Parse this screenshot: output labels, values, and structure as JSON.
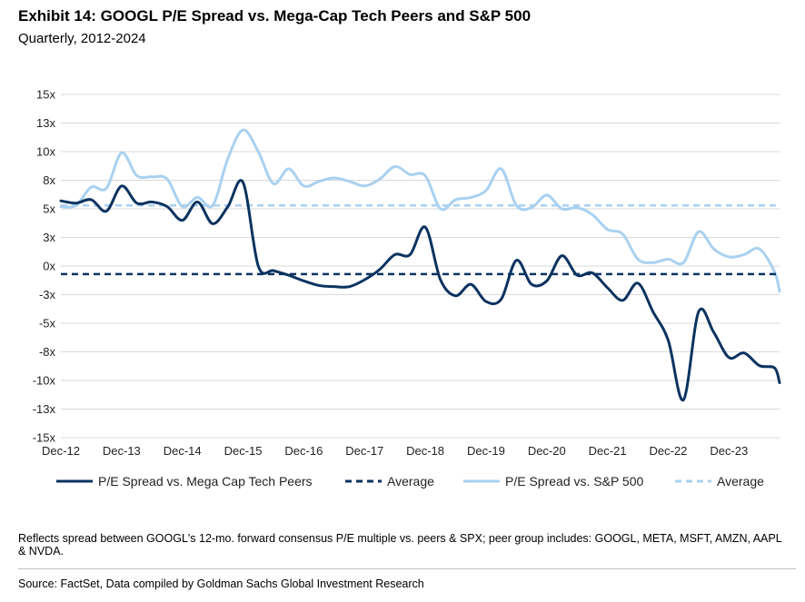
{
  "title": "Exhibit 14: GOOGL P/E Spread vs. Mega-Cap Tech Peers and S&P 500",
  "subtitle": "Quarterly, 2012-2024",
  "footnote": "Reflects spread between GOOGL's 12-mo. forward consensus P/E multiple vs. peers & SPX; peer group includes: GOOGL, META, MSFT, AMZN, AAPL & NVDA.",
  "source": "Source: FactSet, Data compiled by Goldman Sachs Global Investment Research",
  "colors": {
    "dark": "#0b3360",
    "light": "#a9d1f0",
    "grid": "#d9d9d9"
  },
  "chart_data": {
    "type": "line",
    "ylim": [
      -15,
      15
    ],
    "xlim": [
      2012.917,
      2024.75
    ],
    "y_ticks": [
      15,
      12.5,
      10,
      7.5,
      5,
      2.5,
      0,
      -2.5,
      -5,
      -7.5,
      -10,
      -12.5,
      -15
    ],
    "y_tick_labels": [
      "15x",
      "13x",
      "10x",
      "8x",
      "5x",
      "3x",
      "0x",
      "-3x",
      "-5x",
      "-8x",
      "-10x",
      "-13x",
      "-15x"
    ],
    "x_ticks": [
      2012.917,
      2013.917,
      2014.917,
      2015.917,
      2016.917,
      2017.917,
      2018.917,
      2019.917,
      2020.917,
      2021.917,
      2022.917,
      2023.917
    ],
    "x_tick_labels": [
      "Dec-12",
      "Dec-13",
      "Dec-14",
      "Dec-15",
      "Dec-16",
      "Dec-17",
      "Dec-18",
      "Dec-19",
      "Dec-20",
      "Dec-21",
      "Dec-22",
      "Dec-23"
    ],
    "grid": "horizontal",
    "legend_position": "bottom",
    "series": [
      {
        "name": "P/E Spread vs. Mega Cap Tech Peers",
        "color": "#0b3360",
        "dash": false,
        "x": [
          2012.917,
          2013.167,
          2013.417,
          2013.667,
          2013.917,
          2014.167,
          2014.417,
          2014.667,
          2014.917,
          2015.167,
          2015.417,
          2015.667,
          2015.917,
          2016.167,
          2016.417,
          2016.667,
          2016.917,
          2017.167,
          2017.417,
          2017.667,
          2017.917,
          2018.167,
          2018.417,
          2018.667,
          2018.917,
          2019.167,
          2019.417,
          2019.667,
          2019.917,
          2020.167,
          2020.417,
          2020.667,
          2020.917,
          2021.167,
          2021.417,
          2021.667,
          2021.917,
          2022.167,
          2022.417,
          2022.667,
          2022.917,
          2023.167,
          2023.417,
          2023.667,
          2023.917,
          2024.167,
          2024.417,
          2024.667,
          2024.75
        ],
        "y": [
          5.7,
          5.5,
          5.8,
          4.8,
          7.0,
          5.5,
          5.6,
          5.2,
          4.0,
          5.6,
          3.7,
          5.2,
          7.3,
          0.0,
          -0.4,
          -0.8,
          -1.3,
          -1.7,
          -1.8,
          -1.8,
          -1.2,
          -0.3,
          1.0,
          1.0,
          3.4,
          -1.2,
          -2.6,
          -1.6,
          -3.1,
          -2.9,
          0.5,
          -1.6,
          -1.3,
          0.9,
          -0.8,
          -0.6,
          -1.9,
          -3.0,
          -1.5,
          -4.0,
          -6.5,
          -11.7,
          -4.0,
          -5.8,
          -8.0,
          -7.6,
          -8.7,
          -8.9,
          -10.2
        ]
      },
      {
        "name": "Average",
        "color": "#0b3360",
        "dash": true,
        "x": [
          2012.917,
          2024.75
        ],
        "y": [
          -0.7,
          -0.7
        ]
      },
      {
        "name": "P/E Spread vs. S&P 500",
        "color": "#a9d1f0",
        "dash": false,
        "x": [
          2012.917,
          2013.167,
          2013.417,
          2013.667,
          2013.917,
          2014.167,
          2014.417,
          2014.667,
          2014.917,
          2015.167,
          2015.417,
          2015.667,
          2015.917,
          2016.167,
          2016.417,
          2016.667,
          2016.917,
          2017.167,
          2017.417,
          2017.667,
          2017.917,
          2018.167,
          2018.417,
          2018.667,
          2018.917,
          2019.167,
          2019.417,
          2019.667,
          2019.917,
          2020.167,
          2020.417,
          2020.667,
          2020.917,
          2021.167,
          2021.417,
          2021.667,
          2021.917,
          2022.167,
          2022.417,
          2022.667,
          2022.917,
          2023.167,
          2023.417,
          2023.667,
          2023.917,
          2024.167,
          2024.417,
          2024.667,
          2024.75
        ],
        "y": [
          5.2,
          5.3,
          6.9,
          6.8,
          9.9,
          7.9,
          7.8,
          7.6,
          5.2,
          6.0,
          5.3,
          9.4,
          11.9,
          10.0,
          7.2,
          8.5,
          7.0,
          7.4,
          7.7,
          7.4,
          7.0,
          7.6,
          8.7,
          8.0,
          7.9,
          5.0,
          5.8,
          6.0,
          6.6,
          8.5,
          5.3,
          5.1,
          6.2,
          5.0,
          5.1,
          4.5,
          3.2,
          2.8,
          0.6,
          0.3,
          0.6,
          0.3,
          3.0,
          1.5,
          0.8,
          1.0,
          1.5,
          -0.5,
          -2.2
        ]
      },
      {
        "name": "Average",
        "color": "#a9d1f0",
        "dash": true,
        "x": [
          2012.917,
          2024.75
        ],
        "y": [
          5.3,
          5.3
        ]
      }
    ]
  }
}
